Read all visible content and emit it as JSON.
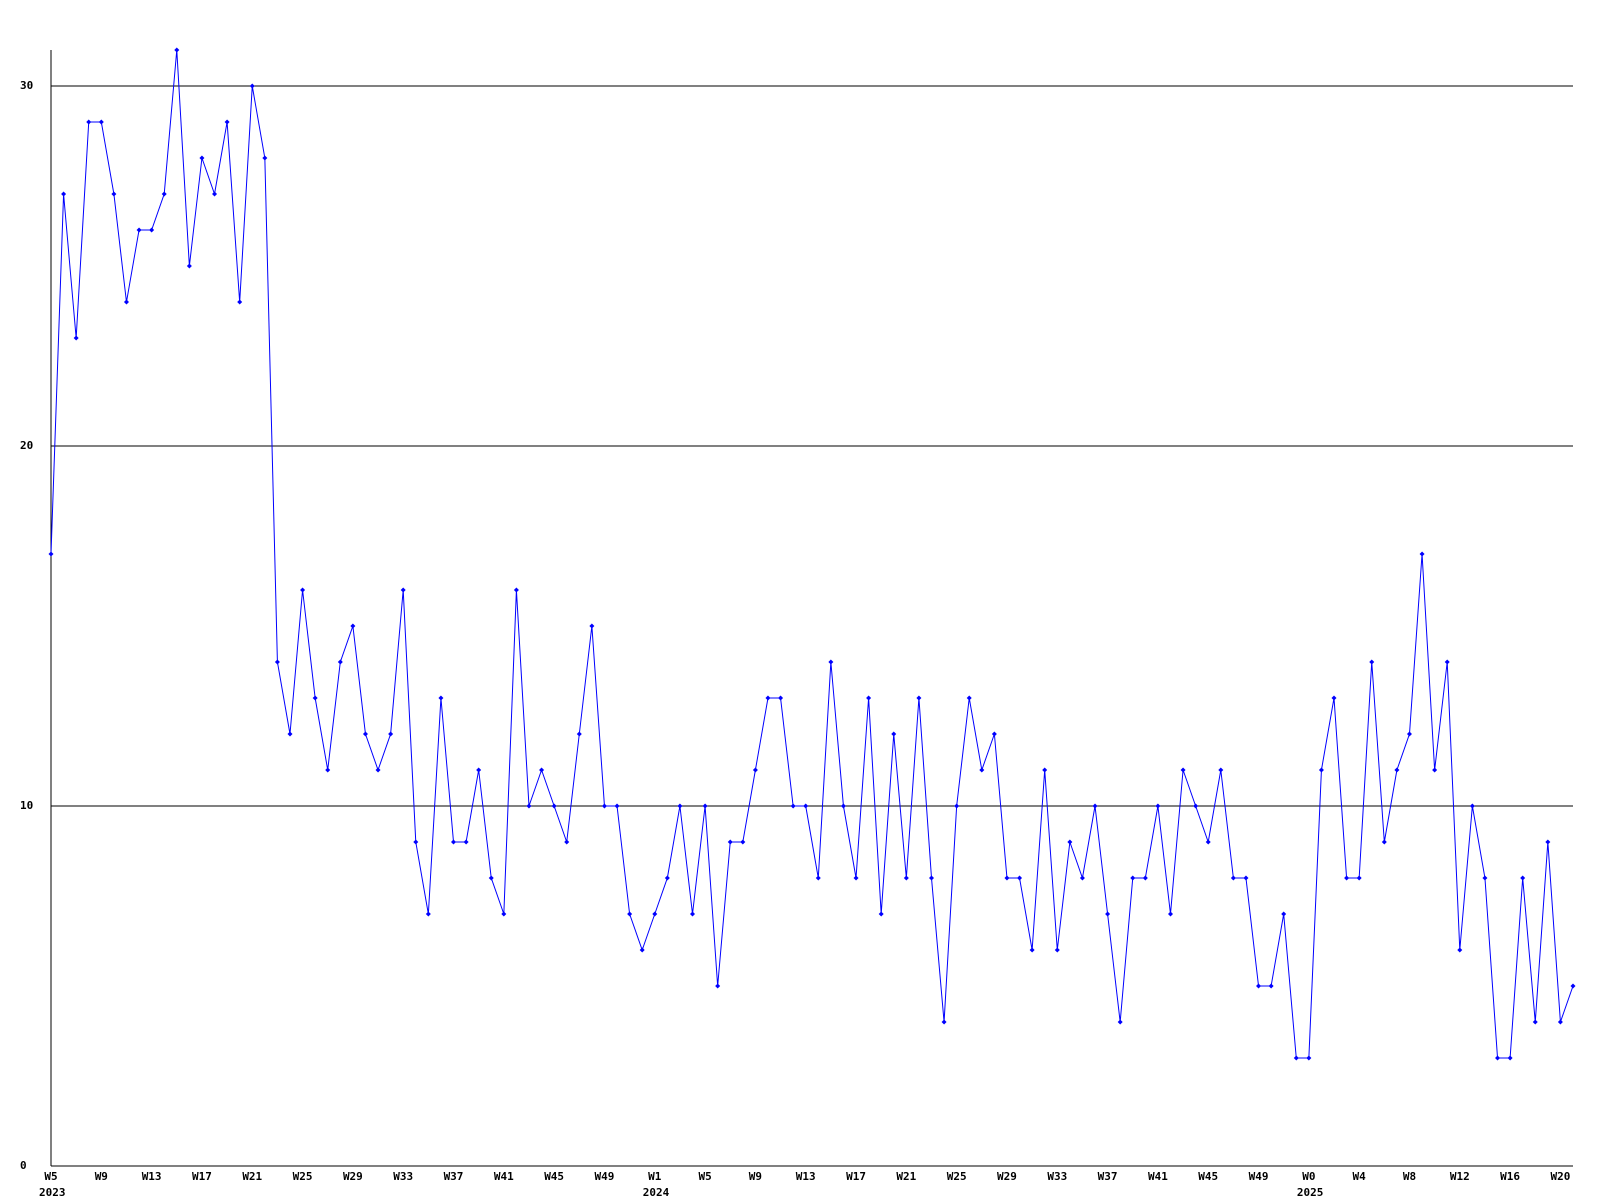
{
  "chart_data": {
    "type": "line",
    "categories": [
      "W5",
      null,
      null,
      null,
      "W9",
      null,
      null,
      null,
      "W13",
      null,
      null,
      null,
      "W17",
      null,
      null,
      null,
      "W21",
      null,
      null,
      null,
      "W25",
      null,
      null,
      null,
      "W29",
      null,
      null,
      null,
      "W33",
      null,
      null,
      null,
      "W37",
      null,
      null,
      null,
      "W41",
      null,
      null,
      null,
      "W45",
      null,
      null,
      null,
      "W49",
      null,
      null,
      null,
      "W1",
      null,
      null,
      null,
      "W5",
      null,
      null,
      null,
      "W9",
      null,
      null,
      null,
      "W13",
      null,
      null,
      null,
      "W17",
      null,
      null,
      null,
      "W21",
      null,
      null,
      null,
      "W25",
      null,
      null,
      null,
      "W29",
      null,
      null,
      null,
      "W33",
      null,
      null,
      null,
      "W37",
      null,
      null,
      null,
      "W41",
      null,
      null,
      null,
      "W45",
      null,
      null,
      null,
      "W49",
      null,
      null,
      null,
      "W0",
      null,
      null,
      null,
      "W4",
      null,
      null,
      null,
      "W8",
      null,
      null,
      null,
      "W12",
      null,
      null,
      null,
      "W16",
      null,
      null,
      null,
      "W20",
      null
    ],
    "category_years": [
      "2023",
      null,
      null,
      null,
      null,
      null,
      null,
      null,
      null,
      null,
      null,
      null,
      null,
      null,
      null,
      null,
      null,
      null,
      null,
      null,
      null,
      null,
      null,
      null,
      null,
      null,
      null,
      null,
      null,
      null,
      null,
      null,
      null,
      null,
      null,
      null,
      null,
      null,
      null,
      null,
      null,
      null,
      null,
      null,
      null,
      null,
      null,
      null,
      "2024",
      null,
      null,
      null,
      null,
      null,
      null,
      null,
      null,
      null,
      null,
      null,
      null,
      null,
      null,
      null,
      null,
      null,
      null,
      null,
      null,
      null,
      null,
      null,
      null,
      null,
      null,
      null,
      null,
      null,
      null,
      null,
      null,
      null,
      null,
      null,
      null,
      null,
      null,
      null,
      null,
      null,
      null,
      null,
      null,
      null,
      null,
      null,
      null,
      null,
      null,
      null,
      "2025",
      null,
      null,
      null,
      null,
      null,
      null,
      null,
      null,
      null,
      null,
      null,
      null,
      null,
      null,
      null,
      null,
      null,
      null,
      null,
      null,
      null
    ],
    "series": [
      {
        "color": "#0000ff",
        "values": [
          17,
          27,
          23,
          29,
          29,
          27,
          24,
          26,
          26,
          27,
          31,
          25,
          28,
          27,
          29,
          24,
          30,
          28,
          14,
          12,
          16,
          13,
          11,
          14,
          15,
          12,
          11,
          12,
          16,
          9,
          7,
          13,
          9,
          9,
          11,
          8,
          7,
          16,
          10,
          11,
          10,
          9,
          12,
          15,
          10,
          10,
          7,
          6,
          7,
          8,
          10,
          7,
          10,
          5,
          9,
          9,
          11,
          13,
          13,
          10,
          10,
          8,
          14,
          10,
          8,
          13,
          7,
          12,
          8,
          13,
          8,
          4,
          10,
          13,
          11,
          12,
          8,
          8,
          6,
          11,
          6,
          9,
          8,
          10,
          7,
          4,
          8,
          8,
          10,
          7,
          11,
          10,
          9,
          11,
          8,
          8,
          5,
          5,
          7,
          3,
          3,
          11,
          13,
          8,
          8,
          14,
          9,
          11,
          12,
          17,
          11,
          14,
          6,
          10,
          8,
          3,
          3,
          8,
          4,
          9,
          4,
          5
        ]
      }
    ],
    "ylim": [
      0,
      31
    ],
    "yticks": [
      0,
      10,
      20,
      30
    ],
    "grid": true
  }
}
